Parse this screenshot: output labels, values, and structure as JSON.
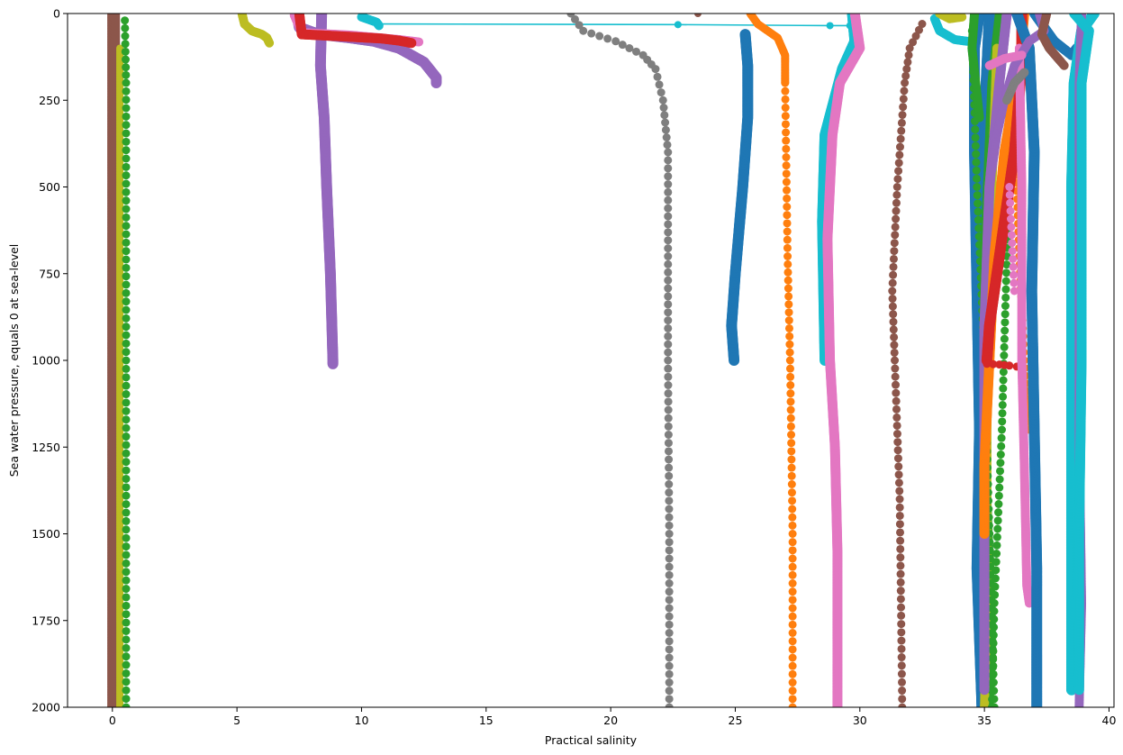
{
  "chart_data": {
    "type": "scatter",
    "xlabel": "Practical salinity",
    "ylabel": "Sea water pressure, equals 0 at sea-level",
    "xlim": [
      -1.8,
      40.2
    ],
    "ylim": [
      2000,
      0
    ],
    "y_inverted": true,
    "grid": false,
    "legend": "none",
    "x_ticks": [
      0,
      5,
      10,
      15,
      20,
      25,
      30,
      35,
      40
    ],
    "y_ticks": [
      0,
      250,
      500,
      750,
      1000,
      1250,
      1500,
      1750,
      2000
    ],
    "colors": [
      "#1f77b4",
      "#ff7f0e",
      "#2ca02c",
      "#d62728",
      "#9467bd",
      "#8c564b",
      "#e377c2",
      "#7f7f7f",
      "#bcbd22",
      "#17becf"
    ],
    "series": [
      {
        "color": "#8c564b",
        "size": 7,
        "mode": "dense",
        "points": [
          [
            0.05,
            0
          ],
          [
            0.05,
            500
          ],
          [
            0.05,
            1000
          ],
          [
            0.05,
            1500
          ],
          [
            0.05,
            2000
          ]
        ]
      },
      {
        "color": "#bcbd22",
        "size": 4,
        "mode": "dense",
        "points": [
          [
            0.3,
            100
          ],
          [
            0.3,
            2000
          ]
        ]
      },
      {
        "color": "#2ca02c",
        "size": 4.5,
        "mode": "sparse",
        "points": [
          [
            0.5,
            20
          ],
          [
            0.55,
            200
          ],
          [
            0.55,
            1000
          ],
          [
            0.55,
            2000
          ]
        ]
      },
      {
        "color": "#bcbd22",
        "size": 5,
        "mode": "dense",
        "points": [
          [
            5.2,
            0
          ],
          [
            5.3,
            30
          ],
          [
            5.6,
            50
          ],
          [
            6.0,
            60
          ],
          [
            6.2,
            70
          ],
          [
            6.3,
            85
          ]
        ]
      },
      {
        "color": "#9467bd",
        "size": 6,
        "mode": "dense",
        "points": [
          [
            8.4,
            0
          ],
          [
            8.35,
            150
          ],
          [
            8.5,
            300
          ],
          [
            8.6,
            500
          ],
          [
            8.75,
            750
          ],
          [
            8.85,
            1000
          ],
          [
            8.85,
            1010
          ]
        ]
      },
      {
        "color": "#9467bd",
        "size": 6,
        "mode": "dense",
        "points": [
          [
            7.4,
            0
          ],
          [
            7.5,
            40
          ],
          [
            8.3,
            60
          ],
          [
            9.5,
            70
          ],
          [
            10.5,
            80
          ],
          [
            11.5,
            100
          ],
          [
            12.5,
            140
          ],
          [
            13.0,
            185
          ],
          [
            13.0,
            200
          ]
        ]
      },
      {
        "color": "#e377c2",
        "size": 5,
        "mode": "dense",
        "points": [
          [
            7.3,
            5
          ],
          [
            7.6,
            55
          ],
          [
            9.5,
            62
          ],
          [
            11.5,
            75
          ],
          [
            12.3,
            82
          ]
        ]
      },
      {
        "color": "#d62728",
        "size": 5.5,
        "mode": "dense",
        "points": [
          [
            7.5,
            0
          ],
          [
            7.6,
            60
          ],
          [
            9.5,
            67
          ],
          [
            10.8,
            72
          ],
          [
            11.5,
            78
          ],
          [
            12.0,
            85
          ]
        ]
      },
      {
        "color": "#17becf",
        "size": 5,
        "mode": "dense",
        "points": [
          [
            10.0,
            10
          ],
          [
            10.6,
            25
          ],
          [
            10.7,
            35
          ]
        ]
      },
      {
        "color": "#17becf",
        "size": 4,
        "mode": "line",
        "points": [
          [
            10.7,
            30
          ],
          [
            22.7,
            32
          ],
          [
            28.8,
            35
          ],
          [
            29.6,
            35
          ]
        ]
      },
      {
        "color": "#8c564b",
        "size": 4,
        "mode": "sparse",
        "points": [
          [
            23.5,
            0
          ]
        ]
      },
      {
        "color": "#7f7f7f",
        "size": 4.5,
        "mode": "sparse",
        "points": [
          [
            18.4,
            0
          ],
          [
            18.9,
            50
          ],
          [
            20.2,
            80
          ],
          [
            21.3,
            120
          ],
          [
            21.8,
            160
          ],
          [
            22.1,
            250
          ],
          [
            22.3,
            400
          ],
          [
            22.3,
            700
          ],
          [
            22.3,
            1000
          ],
          [
            22.35,
            1500
          ],
          [
            22.35,
            2000
          ]
        ]
      },
      {
        "color": "#1f77b4",
        "size": 6,
        "mode": "dense",
        "points": [
          [
            25.4,
            60
          ],
          [
            25.5,
            150
          ],
          [
            25.5,
            300
          ],
          [
            25.3,
            500
          ],
          [
            25.0,
            750
          ],
          [
            24.85,
            900
          ],
          [
            24.95,
            1000
          ]
        ]
      },
      {
        "color": "#ff7f0e",
        "size": 4.5,
        "mode": "dense",
        "points": [
          [
            25.6,
            0
          ],
          [
            25.9,
            30
          ],
          [
            26.7,
            70
          ],
          [
            27.0,
            120
          ],
          [
            27.0,
            200
          ]
        ]
      },
      {
        "color": "#ff7f0e",
        "size": 4.5,
        "mode": "sparse",
        "points": [
          [
            27.0,
            200
          ],
          [
            27.1,
            700
          ],
          [
            27.2,
            1000
          ],
          [
            27.3,
            1500
          ],
          [
            27.3,
            2000
          ]
        ]
      },
      {
        "color": "#17becf",
        "size": 6,
        "mode": "dense",
        "points": [
          [
            29.7,
            0
          ],
          [
            29.8,
            80
          ],
          [
            29.3,
            160
          ],
          [
            28.6,
            350
          ],
          [
            28.5,
            600
          ],
          [
            28.6,
            1000
          ]
        ]
      },
      {
        "color": "#e377c2",
        "size": 5.5,
        "mode": "dense",
        "points": [
          [
            29.8,
            0
          ],
          [
            30.0,
            100
          ],
          [
            29.2,
            200
          ],
          [
            28.9,
            350
          ],
          [
            28.7,
            650
          ],
          [
            28.8,
            1000
          ],
          [
            29.0,
            1250
          ],
          [
            29.1,
            1550
          ],
          [
            29.1,
            2000
          ]
        ]
      },
      {
        "color": "#8c564b",
        "size": 4.5,
        "mode": "sparse",
        "points": [
          [
            32.5,
            30
          ],
          [
            32.0,
            100
          ],
          [
            31.8,
            200
          ],
          [
            31.5,
            500
          ],
          [
            31.3,
            800
          ],
          [
            31.4,
            1000
          ],
          [
            31.6,
            1400
          ],
          [
            31.7,
            2000
          ]
        ]
      },
      {
        "color": "#17becf",
        "size": 5,
        "mode": "dense",
        "points": [
          [
            33.0,
            15
          ],
          [
            33.2,
            50
          ],
          [
            33.8,
            75
          ],
          [
            34.3,
            80
          ]
        ]
      },
      {
        "color": "#bcbd22",
        "size": 5,
        "mode": "dense",
        "points": [
          [
            33.2,
            0
          ],
          [
            33.6,
            15
          ],
          [
            34.1,
            10
          ]
        ]
      },
      {
        "color": "#1f77b4",
        "size": 6,
        "mode": "dense",
        "points": [
          [
            34.8,
            0
          ],
          [
            34.6,
            100
          ],
          [
            34.6,
            400
          ],
          [
            34.7,
            800
          ],
          [
            34.8,
            1200
          ],
          [
            34.7,
            1600
          ],
          [
            34.9,
            2000
          ]
        ]
      },
      {
        "color": "#1f77b4",
        "size": 6,
        "mode": "dense",
        "points": [
          [
            35.2,
            0
          ],
          [
            35.0,
            300
          ],
          [
            34.9,
            800
          ],
          [
            34.9,
            1300
          ],
          [
            34.8,
            1700
          ],
          [
            34.9,
            2000
          ]
        ]
      },
      {
        "color": "#2ca02c",
        "size": 5,
        "mode": "dense",
        "points": [
          [
            35.6,
            0
          ],
          [
            35.3,
            200
          ],
          [
            35.0,
            700
          ],
          [
            35.0,
            1200
          ],
          [
            35.2,
            1600
          ],
          [
            35.2,
            2000
          ]
        ]
      },
      {
        "color": "#bcbd22",
        "size": 5,
        "mode": "dense",
        "points": [
          [
            35.5,
            100
          ],
          [
            35.3,
            500
          ],
          [
            35.1,
            1200
          ],
          [
            35.1,
            1700
          ],
          [
            35.0,
            2000
          ]
        ]
      },
      {
        "color": "#2ca02c",
        "size": 4.5,
        "mode": "sparse",
        "points": [
          [
            34.5,
            50
          ],
          [
            34.7,
            500
          ],
          [
            35.0,
            1000
          ],
          [
            35.2,
            1500
          ],
          [
            35.4,
            2000
          ]
        ]
      },
      {
        "color": "#2ca02c",
        "size": 4.5,
        "mode": "sparse",
        "points": [
          [
            36.0,
            200
          ],
          [
            35.9,
            700
          ],
          [
            35.7,
            1200
          ],
          [
            35.4,
            1700
          ],
          [
            35.3,
            2000
          ]
        ]
      },
      {
        "color": "#9467bd",
        "size": 5.5,
        "mode": "dense",
        "points": [
          [
            35.9,
            0
          ],
          [
            35.6,
            200
          ],
          [
            35.2,
            500
          ],
          [
            35.0,
            900
          ],
          [
            35.0,
            1400
          ],
          [
            35.0,
            1950
          ]
        ]
      },
      {
        "color": "#ff7f0e",
        "size": 5.5,
        "mode": "dense",
        "points": [
          [
            36.6,
            0
          ],
          [
            36.4,
            150
          ],
          [
            35.8,
            400
          ],
          [
            35.4,
            700
          ],
          [
            35.2,
            1000
          ],
          [
            35.0,
            1300
          ],
          [
            35.0,
            1500
          ]
        ]
      },
      {
        "color": "#ff7f0e",
        "size": 4.5,
        "mode": "sparse",
        "points": [
          [
            36.2,
            300
          ],
          [
            36.4,
            700
          ],
          [
            36.6,
            1000
          ],
          [
            36.8,
            1200
          ]
        ]
      },
      {
        "color": "#d62728",
        "size": 6,
        "mode": "dense",
        "points": [
          [
            36.5,
            0
          ],
          [
            36.5,
            150
          ],
          [
            36.2,
            400
          ],
          [
            35.6,
            700
          ],
          [
            35.2,
            900
          ],
          [
            35.1,
            1000
          ]
        ]
      },
      {
        "color": "#d62728",
        "size": 4.5,
        "mode": "sparse",
        "points": [
          [
            35.1,
            1010
          ],
          [
            35.6,
            1012
          ],
          [
            36.0,
            1015
          ],
          [
            36.3,
            1018
          ]
        ]
      },
      {
        "color": "#e377c2",
        "size": 5,
        "mode": "dense",
        "points": [
          [
            36.4,
            100
          ],
          [
            36.5,
            500
          ],
          [
            36.5,
            700
          ],
          [
            36.5,
            1000
          ],
          [
            36.6,
            1300
          ],
          [
            36.7,
            1650
          ],
          [
            36.8,
            1700
          ]
        ]
      },
      {
        "color": "#e377c2",
        "size": 4.5,
        "mode": "sparse",
        "points": [
          [
            36.0,
            500
          ],
          [
            36.2,
            800
          ]
        ]
      },
      {
        "color": "#1f77b4",
        "size": 6,
        "mode": "dense",
        "points": [
          [
            36.3,
            0
          ],
          [
            36.8,
            100
          ],
          [
            37.0,
            400
          ],
          [
            36.9,
            800
          ],
          [
            37.0,
            1200
          ],
          [
            37.1,
            1600
          ],
          [
            37.1,
            2000
          ]
        ]
      },
      {
        "color": "#1f77b4",
        "size": 5.5,
        "mode": "dense",
        "points": [
          [
            37.0,
            0
          ],
          [
            37.8,
            80
          ],
          [
            38.5,
            120
          ],
          [
            38.7,
            100
          ]
        ]
      },
      {
        "color": "#9467bd",
        "size": 5,
        "mode": "dense",
        "points": [
          [
            37.2,
            0
          ],
          [
            37.4,
            50
          ],
          [
            36.8,
            80
          ],
          [
            36.2,
            150
          ],
          [
            35.8,
            250
          ],
          [
            35.5,
            350
          ],
          [
            35.3,
            450
          ]
        ]
      },
      {
        "color": "#8c564b",
        "size": 5,
        "mode": "dense",
        "points": [
          [
            37.5,
            0
          ],
          [
            37.3,
            60
          ],
          [
            37.6,
            100
          ],
          [
            38.2,
            150
          ]
        ]
      },
      {
        "color": "#17becf",
        "size": 6,
        "mode": "dense",
        "points": [
          [
            39.4,
            0
          ],
          [
            38.9,
            50
          ],
          [
            38.6,
            200
          ],
          [
            38.5,
            500
          ],
          [
            38.5,
            800
          ],
          [
            38.5,
            1200
          ],
          [
            38.5,
            1600
          ],
          [
            38.5,
            1950
          ]
        ]
      },
      {
        "color": "#9467bd",
        "size": 5,
        "mode": "dense",
        "points": [
          [
            38.9,
            0
          ],
          [
            38.8,
            200
          ],
          [
            38.8,
            700
          ],
          [
            38.8,
            1200
          ],
          [
            38.9,
            1700
          ],
          [
            38.8,
            2000
          ]
        ]
      },
      {
        "color": "#17becf",
        "size": 5.5,
        "mode": "dense",
        "points": [
          [
            38.6,
            0
          ],
          [
            39.2,
            50
          ],
          [
            38.9,
            200
          ],
          [
            38.9,
            1000
          ],
          [
            38.8,
            1500
          ],
          [
            38.8,
            1950
          ]
        ]
      },
      {
        "color": "#7f7f7f",
        "size": 5,
        "mode": "dense",
        "points": [
          [
            36.6,
            170
          ],
          [
            36.2,
            200
          ],
          [
            35.9,
            250
          ]
        ]
      },
      {
        "color": "#e377c2",
        "size": 5,
        "mode": "dense",
        "points": [
          [
            35.2,
            150
          ],
          [
            35.8,
            130
          ],
          [
            36.5,
            120
          ]
        ]
      },
      {
        "color": "#2ca02c",
        "size": 5,
        "mode": "dense",
        "points": [
          [
            34.6,
            0
          ],
          [
            34.5,
            100
          ],
          [
            34.8,
            300
          ]
        ]
      }
    ]
  }
}
